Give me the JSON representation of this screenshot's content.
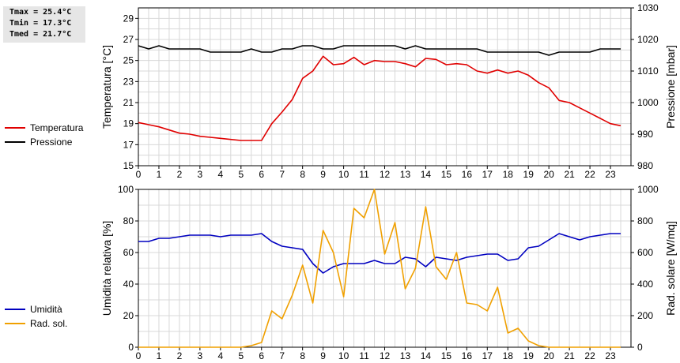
{
  "stats": {
    "tmax": "Tmax = 25.4°C",
    "tmin": "Tmin = 17.3°C",
    "tmed": "Tmed = 21.7°C"
  },
  "legend_top": [
    {
      "label": "Temperatura",
      "color": "#e00000"
    },
    {
      "label": "Pressione",
      "color": "#000000"
    }
  ],
  "legend_bottom": [
    {
      "label": "Umidità",
      "color": "#0000c0"
    },
    {
      "label": "Rad. sol.",
      "color": "#f0a000"
    }
  ],
  "chart_data": [
    {
      "type": "line",
      "ylabel": "Temperatura [°C]",
      "y2label": "Pressione [mbar]",
      "xlim": [
        0,
        24
      ],
      "ylim": [
        15,
        30
      ],
      "y2lim": [
        980,
        1030
      ],
      "x_ticks": [
        0,
        1,
        2,
        3,
        4,
        5,
        6,
        7,
        8,
        9,
        10,
        11,
        12,
        13,
        14,
        15,
        16,
        17,
        18,
        19,
        20,
        21,
        22,
        23
      ],
      "y_ticks": [
        15,
        17,
        19,
        21,
        23,
        25,
        27,
        29
      ],
      "y2_ticks": [
        980,
        990,
        1000,
        1010,
        1020,
        1030
      ],
      "grid": true,
      "series": [
        {
          "name": "Temperatura",
          "axis": "left",
          "color": "#e00000",
          "x": [
            0,
            0.5,
            1,
            1.5,
            2,
            2.5,
            3,
            3.5,
            4,
            4.5,
            5,
            5.5,
            6,
            6.5,
            7,
            7.5,
            8,
            8.5,
            9,
            9.5,
            10,
            10.5,
            11,
            11.5,
            12,
            12.5,
            13,
            13.5,
            14,
            14.5,
            15,
            15.5,
            16,
            16.5,
            17,
            17.5,
            18,
            18.5,
            19,
            19.5,
            20,
            20.5,
            21,
            21.5,
            22,
            22.5,
            23,
            23.5
          ],
          "y": [
            19.1,
            18.9,
            18.7,
            18.4,
            18.1,
            18.0,
            17.8,
            17.7,
            17.6,
            17.5,
            17.4,
            17.4,
            17.4,
            19.0,
            20.1,
            21.3,
            23.3,
            24.0,
            25.4,
            24.6,
            24.7,
            25.3,
            24.6,
            25.0,
            24.9,
            24.9,
            24.7,
            24.4,
            25.2,
            25.1,
            24.6,
            24.7,
            24.6,
            24.0,
            23.8,
            24.1,
            23.8,
            24.0,
            23.6,
            22.9,
            22.4,
            21.2,
            21.0,
            20.5,
            20.0,
            19.5,
            19.0,
            18.8
          ]
        },
        {
          "name": "Pressione",
          "axis": "right",
          "color": "#000000",
          "x": [
            0,
            0.5,
            1,
            1.5,
            2,
            2.5,
            3,
            3.5,
            4,
            4.5,
            5,
            5.5,
            6,
            6.5,
            7,
            7.5,
            8,
            8.5,
            9,
            9.5,
            10,
            10.5,
            11,
            11.5,
            12,
            12.5,
            13,
            13.5,
            14,
            14.5,
            15,
            15.5,
            16,
            16.5,
            17,
            17.5,
            18,
            18.5,
            19,
            19.5,
            20,
            20.5,
            21,
            21.5,
            22,
            22.5,
            23,
            23.5
          ],
          "y": [
            1018,
            1017,
            1018,
            1017,
            1017,
            1017,
            1017,
            1016,
            1016,
            1016,
            1016,
            1017,
            1016,
            1016,
            1017,
            1017,
            1018,
            1018,
            1017,
            1017,
            1018,
            1018,
            1018,
            1018,
            1018,
            1018,
            1017,
            1018,
            1017,
            1017,
            1017,
            1017,
            1017,
            1017,
            1016,
            1016,
            1016,
            1016,
            1016,
            1016,
            1015,
            1016,
            1016,
            1016,
            1016,
            1017,
            1017,
            1017
          ]
        }
      ]
    },
    {
      "type": "line",
      "ylabel": "Umidità relativa [%]",
      "y2label": "Rad. solare [W/mq]",
      "xlim": [
        0,
        24
      ],
      "ylim": [
        0,
        100
      ],
      "y2lim": [
        0,
        1000
      ],
      "x_ticks": [
        0,
        1,
        2,
        3,
        4,
        5,
        6,
        7,
        8,
        9,
        10,
        11,
        12,
        13,
        14,
        15,
        16,
        17,
        18,
        19,
        20,
        21,
        22,
        23
      ],
      "y_ticks": [
        0,
        20,
        40,
        60,
        80,
        100
      ],
      "y2_ticks": [
        0,
        200,
        400,
        600,
        800,
        1000
      ],
      "grid": true,
      "series": [
        {
          "name": "Umidità",
          "axis": "left",
          "color": "#0000c0",
          "x": [
            0,
            0.5,
            1,
            1.5,
            2,
            2.5,
            3,
            3.5,
            4,
            4.5,
            5,
            5.5,
            6,
            6.5,
            7,
            7.5,
            8,
            8.5,
            9,
            9.5,
            10,
            10.5,
            11,
            11.5,
            12,
            12.5,
            13,
            13.5,
            14,
            14.5,
            15,
            15.5,
            16,
            16.5,
            17,
            17.5,
            18,
            18.5,
            19,
            19.5,
            20,
            20.5,
            21,
            21.5,
            22,
            22.5,
            23,
            23.5
          ],
          "y": [
            67,
            67,
            69,
            69,
            70,
            71,
            71,
            71,
            70,
            71,
            71,
            71,
            72,
            67,
            64,
            63,
            62,
            53,
            47,
            51,
            53,
            53,
            53,
            55,
            53,
            53,
            57,
            56,
            51,
            57,
            56,
            55,
            57,
            58,
            59,
            59,
            55,
            56,
            63,
            64,
            68,
            72,
            70,
            68,
            70,
            71,
            72,
            72
          ]
        },
        {
          "name": "Rad. sol.",
          "axis": "right",
          "color": "#f0a000",
          "x": [
            0,
            0.5,
            1,
            1.5,
            2,
            2.5,
            3,
            3.5,
            4,
            4.5,
            5,
            5.5,
            6,
            6.5,
            7,
            7.5,
            8,
            8.5,
            9,
            9.5,
            10,
            10.5,
            11,
            11.5,
            12,
            12.5,
            13,
            13.5,
            14,
            14.5,
            15,
            15.5,
            16,
            16.5,
            17,
            17.5,
            18,
            18.5,
            19,
            19.5,
            20,
            20.5,
            21,
            21.5,
            22,
            22.5,
            23,
            23.5
          ],
          "y": [
            0,
            0,
            0,
            0,
            0,
            0,
            0,
            0,
            0,
            0,
            0,
            10,
            30,
            230,
            180,
            330,
            520,
            280,
            740,
            600,
            320,
            880,
            820,
            1000,
            590,
            790,
            370,
            500,
            890,
            510,
            430,
            600,
            280,
            270,
            230,
            380,
            90,
            120,
            40,
            10,
            0,
            0,
            0,
            0,
            0,
            0,
            0,
            0
          ]
        }
      ]
    }
  ]
}
